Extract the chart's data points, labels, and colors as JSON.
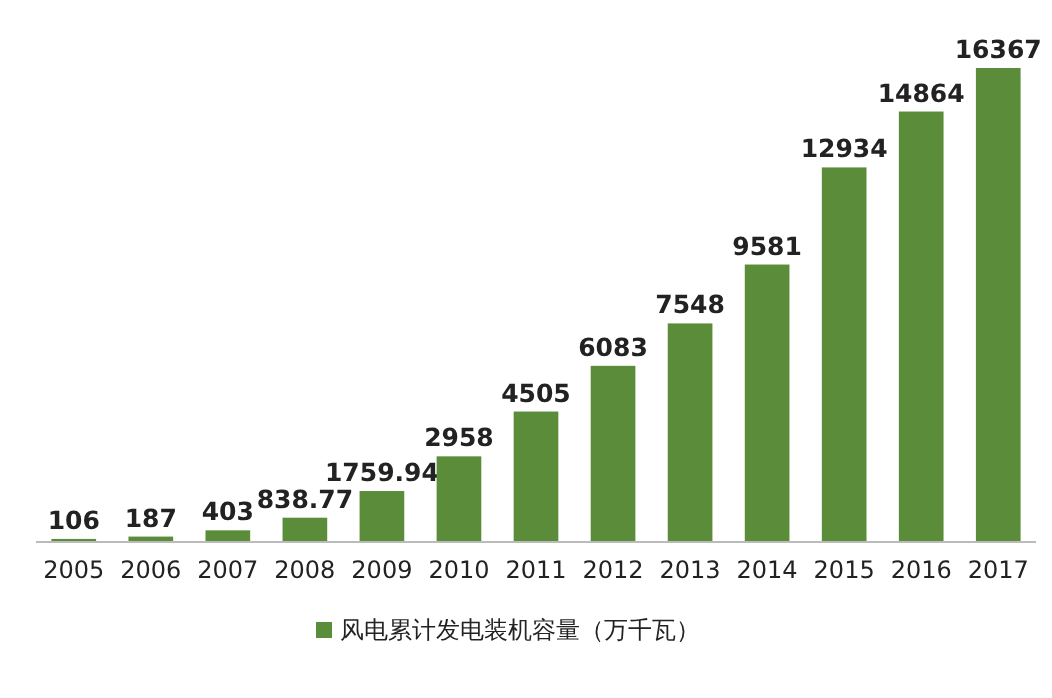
{
  "chart_data": {
    "type": "bar",
    "categories": [
      "2005",
      "2006",
      "2007",
      "2008",
      "2009",
      "2010",
      "2011",
      "2012",
      "2013",
      "2014",
      "2015",
      "2016",
      "2017"
    ],
    "series": [
      {
        "name": "风电累计发电装机容量（万千瓦）",
        "color": "#5b8c3a",
        "values": [
          106,
          187,
          403,
          838.77,
          1759.94,
          2958,
          4505,
          6083,
          7548,
          9581,
          12934,
          14864,
          16367
        ]
      }
    ],
    "data_labels": true,
    "legend": "bottom",
    "grid": false
  }
}
